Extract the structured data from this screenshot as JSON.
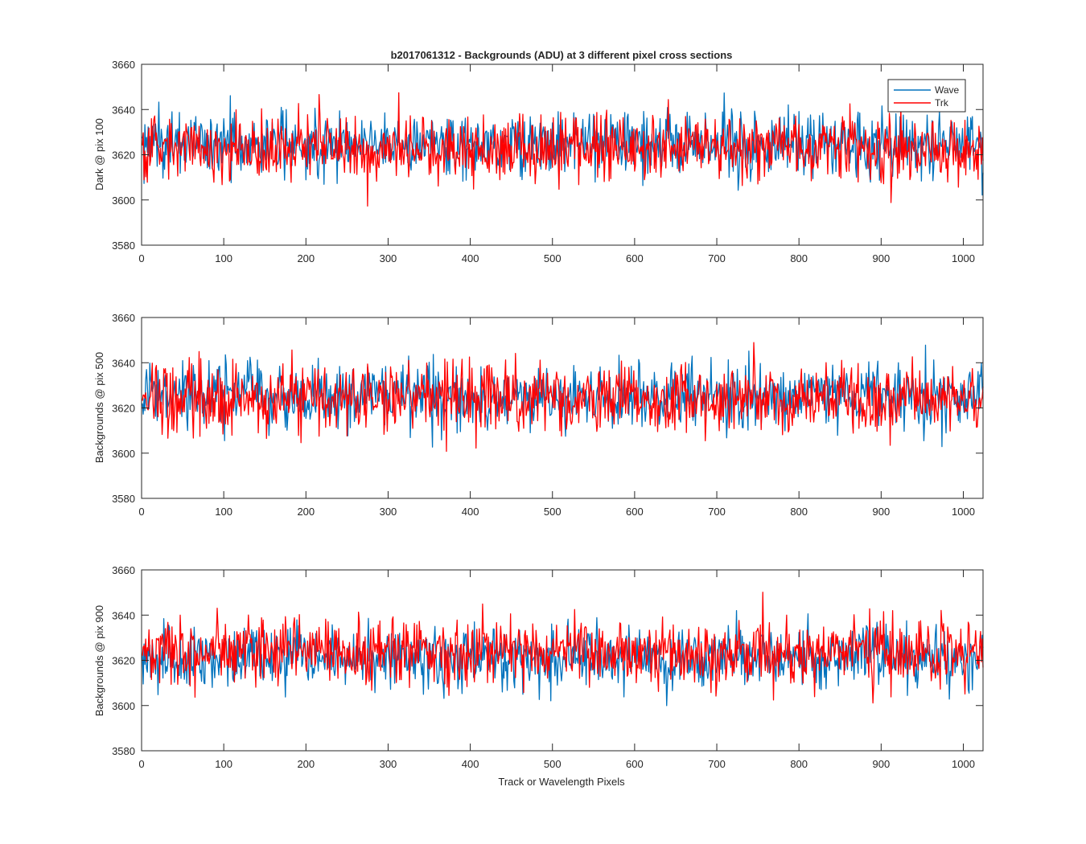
{
  "colors": {
    "wave": "#0072BD",
    "trk": "#FF0000",
    "axis": "#262626",
    "background": "#ffffff"
  },
  "chart_data": [
    {
      "type": "line",
      "title": "b2017061312 - Backgrounds (ADU) at 3 different pixel cross sections",
      "xlabel": "",
      "ylabel": "Dark @ pix 100",
      "xlim": [
        0,
        1024
      ],
      "ylim": [
        3580,
        3660
      ],
      "xticks": [
        "0",
        "100",
        "200",
        "300",
        "400",
        "500",
        "600",
        "700",
        "800",
        "900",
        "1000"
      ],
      "yticks": [
        "3580",
        "3600",
        "3620",
        "3640",
        "3660"
      ],
      "grid": false,
      "legend": {
        "placement": "top-right",
        "entries": [
          "Wave",
          "Trk"
        ]
      },
      "series": [
        {
          "name": "Wave",
          "color": "#0072BD",
          "points": 1024,
          "mean": 3625,
          "std": 7,
          "min": 3597,
          "max": 3654
        },
        {
          "name": "Trk",
          "color": "#FF0000",
          "points": 1024,
          "mean": 3623,
          "std": 7,
          "min": 3594,
          "max": 3649
        }
      ]
    },
    {
      "type": "line",
      "title": "",
      "xlabel": "",
      "ylabel": "Backgrounds @ pix 500",
      "xlim": [
        0,
        1024
      ],
      "ylim": [
        3580,
        3660
      ],
      "xticks": [
        "0",
        "100",
        "200",
        "300",
        "400",
        "500",
        "600",
        "700",
        "800",
        "900",
        "1000"
      ],
      "yticks": [
        "3580",
        "3600",
        "3620",
        "3640",
        "3660"
      ],
      "grid": false,
      "series": [
        {
          "name": "Wave",
          "color": "#0072BD",
          "points": 1024,
          "mean": 3625,
          "std": 7,
          "min": 3599,
          "max": 3657
        },
        {
          "name": "Trk",
          "color": "#FF0000",
          "points": 1024,
          "mean": 3624,
          "std": 7.5,
          "min": 3595,
          "max": 3652
        }
      ]
    },
    {
      "type": "line",
      "title": "",
      "xlabel": "Track or Wavelength Pixels",
      "ylabel": "Backgrounds @ pix 900",
      "xlim": [
        0,
        1024
      ],
      "ylim": [
        3580,
        3660
      ],
      "xticks": [
        "0",
        "100",
        "200",
        "300",
        "400",
        "500",
        "600",
        "700",
        "800",
        "900",
        "1000"
      ],
      "yticks": [
        "3580",
        "3600",
        "3620",
        "3640",
        "3660"
      ],
      "grid": false,
      "series": [
        {
          "name": "Wave",
          "color": "#0072BD",
          "points": 1024,
          "mean": 3621,
          "std": 7,
          "min": 3594,
          "max": 3646
        },
        {
          "name": "Trk",
          "color": "#FF0000",
          "points": 1024,
          "mean": 3624,
          "std": 7.5,
          "min": 3592,
          "max": 3653
        }
      ]
    }
  ]
}
